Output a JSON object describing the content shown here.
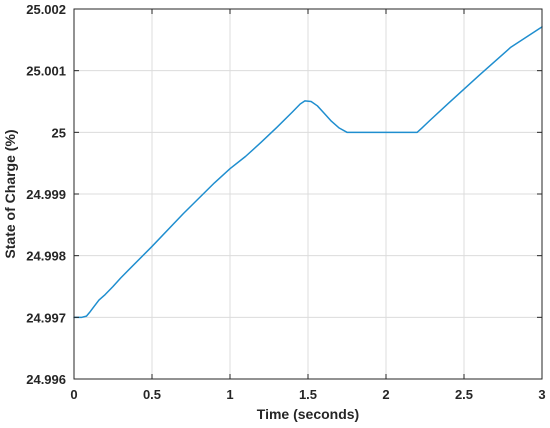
{
  "chart_data": {
    "type": "line",
    "xlabel": "Time (seconds)",
    "ylabel": "State of Charge (%)",
    "xlim": [
      0,
      3
    ],
    "ylim": [
      24.996,
      25.002
    ],
    "x_ticks": [
      "0",
      "0.5",
      "1",
      "1.5",
      "2",
      "2.5",
      "3"
    ],
    "x_tick_values": [
      0,
      0.5,
      1,
      1.5,
      2,
      2.5,
      3
    ],
    "y_ticks": [
      "24.996",
      "24.997",
      "24.998",
      "24.999",
      "25",
      "25.001",
      "25.002"
    ],
    "y_tick_values": [
      24.996,
      24.997,
      24.998,
      24.999,
      25.0,
      25.001,
      25.002
    ],
    "grid": true,
    "series": [
      {
        "color": "#1f8ecf",
        "x": [
          0,
          0.05,
          0.08,
          0.1,
          0.13,
          0.16,
          0.2,
          0.25,
          0.3,
          0.5,
          0.7,
          0.9,
          1.0,
          1.1,
          1.2,
          1.3,
          1.4,
          1.45,
          1.48,
          1.52,
          1.56,
          1.6,
          1.65,
          1.7,
          1.75,
          1.8,
          2.0,
          2.2,
          2.23,
          2.28,
          2.4,
          2.6,
          2.8,
          3.0
        ],
        "y": [
          24.997,
          24.997,
          24.99702,
          24.99708,
          24.99718,
          24.99728,
          24.99737,
          24.9975,
          24.99764,
          24.99815,
          24.99868,
          24.99918,
          24.99941,
          24.99961,
          24.99984,
          25.00008,
          25.00033,
          25.00046,
          25.00051,
          25.0005,
          25.00043,
          25.00032,
          25.00018,
          25.00007,
          25.0,
          25.0,
          25.0,
          25.0,
          25.00007,
          25.00019,
          25.00047,
          25.00093,
          25.00138,
          25.00171
        ]
      }
    ]
  }
}
